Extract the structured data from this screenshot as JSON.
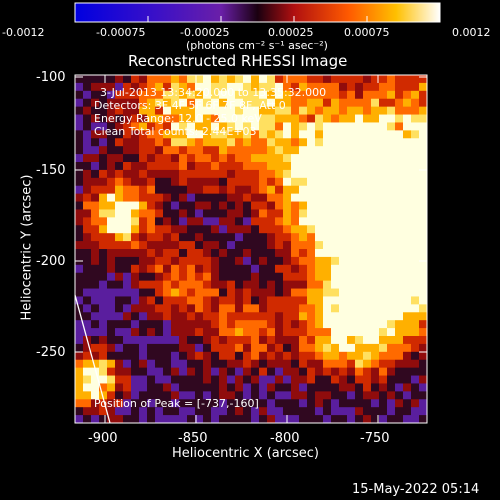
{
  "colorbar": {
    "ticks": [
      "-0.0012",
      "-0.00075",
      "-0.00025",
      "0.00025",
      "0.00075",
      "0.0012"
    ],
    "units": "(photons cm⁻² s⁻¹ asec⁻²)"
  },
  "plot": {
    "title": "Reconstructed RHESSI Image",
    "info_lines": [
      "3-Jul-2013 13:34:20.000 to 13:35:32.000",
      "Detectors: 3F 4F 5F 6F 7F 8F, Att 0",
      "Energy Range: 12.0 - 25.0 keV",
      "Clean    Total counts: 2.44E+03"
    ],
    "peak_label": "Position of Peak = [-737,-160]",
    "xlabel": "Heliocentric X (arcsec)",
    "ylabel": "Heliocentric Y (arcsec)",
    "xticks": [
      "-900",
      "-850",
      "-800",
      "-750"
    ],
    "yticks": [
      "-100",
      "-150",
      "-200",
      "-250"
    ]
  },
  "footer_date": "15-May-2022 05:14",
  "chart_data": {
    "type": "heatmap",
    "title": "Reconstructed RHESSI Image",
    "xlabel": "Heliocentric X (arcsec)",
    "ylabel": "Heliocentric Y (arcsec)",
    "xlim": [
      -918,
      -730
    ],
    "ylim": [
      -288,
      -97
    ],
    "colorbar_range": [
      -0.0012,
      0.0012
    ],
    "colormap": "blue-purple-red-yellow-white",
    "peak": [
      -737,
      -160
    ]
  }
}
